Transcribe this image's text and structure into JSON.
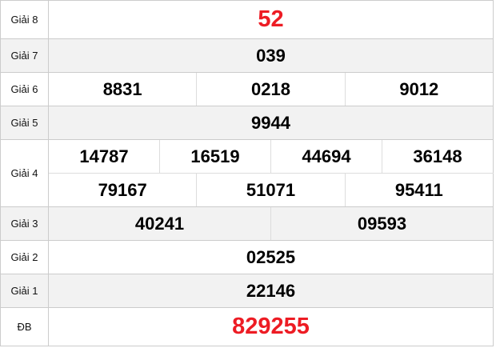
{
  "rows": [
    {
      "label": "Giải 8",
      "lines": [
        [
          "52"
        ]
      ],
      "highlight": true
    },
    {
      "label": "Giải 7",
      "lines": [
        [
          "039"
        ]
      ]
    },
    {
      "label": "Giải 6",
      "lines": [
        [
          "8831",
          "0218",
          "9012"
        ]
      ]
    },
    {
      "label": "Giải 5",
      "lines": [
        [
          "9944"
        ]
      ]
    },
    {
      "label": "Giải 4",
      "lines": [
        [
          "14787",
          "16519",
          "44694",
          "36148"
        ],
        [
          "79167",
          "51071",
          "95411"
        ]
      ]
    },
    {
      "label": "Giải 3",
      "lines": [
        [
          "40241",
          "09593"
        ]
      ]
    },
    {
      "label": "Giải 2",
      "lines": [
        [
          "02525"
        ]
      ]
    },
    {
      "label": "Giải 1",
      "lines": [
        [
          "22146"
        ]
      ]
    },
    {
      "label": "ĐB",
      "lines": [
        [
          "829255"
        ]
      ],
      "highlight": true
    }
  ],
  "colors": {
    "highlight": "#ed1c24",
    "alt_row": "#f2f2f2",
    "border": "#cccccc"
  }
}
